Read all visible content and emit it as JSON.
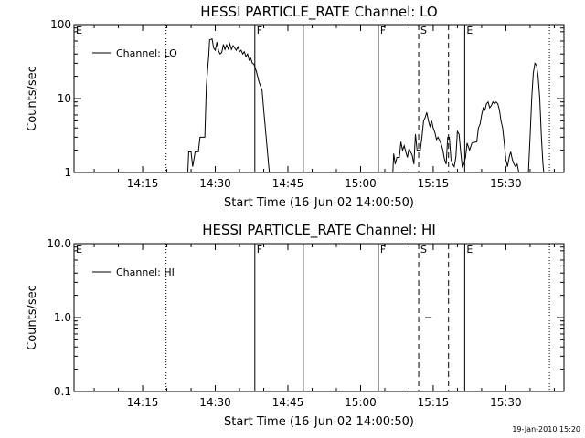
{
  "chart_data": [
    {
      "type": "line",
      "title": "HESSI PARTICLE_RATE Channel: LO",
      "xlabel": "Start Time (16-Jun-02 14:00:50)",
      "ylabel": "Counts/sec",
      "yscale": "log",
      "xlim": [
        "14:00:50",
        "15:42:00"
      ],
      "ylim": [
        1,
        100
      ],
      "x_ticks": [
        "14:15",
        "14:30",
        "14:45",
        "15:00",
        "15:15",
        "15:30"
      ],
      "y_ticks": [
        "1",
        "10",
        "100"
      ],
      "legend": {
        "placement": "top-left",
        "entries": [
          "Channel: LO"
        ]
      },
      "grid": false,
      "event_markers": [
        {
          "label": "E",
          "time": "14:00:50",
          "style": "dotted"
        },
        {
          "label": "",
          "time": "14:19:50",
          "style": "dotted"
        },
        {
          "label": "F",
          "time": "14:38:10",
          "style": "solid"
        },
        {
          "label": "",
          "time": "14:48:10",
          "style": "solid"
        },
        {
          "label": "F",
          "time": "15:03:40",
          "style": "solid"
        },
        {
          "label": "S",
          "time": "15:12:00",
          "style": "dashed"
        },
        {
          "label": "",
          "time": "15:18:10",
          "style": "dashed"
        },
        {
          "label": "E",
          "time": "15:21:30",
          "style": "solid"
        },
        {
          "label": "",
          "time": "15:39:00",
          "style": "dotted"
        }
      ],
      "series": [
        {
          "name": "Channel: LO",
          "segments": [
            [
              [
                "14:24:20",
                1
              ],
              [
                "14:24:30",
                1.9
              ],
              [
                "14:25:00",
                1.9
              ],
              [
                "14:25:20",
                1.2
              ],
              [
                "14:25:50",
                1.9
              ],
              [
                "14:26:30",
                1.9
              ],
              [
                "14:26:50",
                3.0
              ],
              [
                "14:27:50",
                3.0
              ],
              [
                "14:28:10",
                15
              ],
              [
                "14:28:40",
                40
              ],
              [
                "14:28:50",
                62
              ],
              [
                "14:29:20",
                64
              ],
              [
                "14:29:40",
                48
              ],
              [
                "14:30:00",
                45
              ],
              [
                "14:30:20",
                58
              ],
              [
                "14:30:40",
                44
              ],
              [
                "14:31:00",
                40
              ],
              [
                "14:31:20",
                42
              ],
              [
                "14:31:40",
                54
              ],
              [
                "14:32:00",
                46
              ],
              [
                "14:32:20",
                53
              ],
              [
                "14:32:40",
                47
              ],
              [
                "14:33:00",
                55
              ],
              [
                "14:33:20",
                46
              ],
              [
                "14:33:40",
                52
              ],
              [
                "14:34:20",
                45
              ],
              [
                "14:34:40",
                50
              ],
              [
                "14:35:00",
                43
              ],
              [
                "14:35:20",
                45
              ],
              [
                "14:35:40",
                40
              ],
              [
                "14:36:00",
                43
              ],
              [
                "14:36:20",
                37
              ],
              [
                "14:36:40",
                40
              ],
              [
                "14:37:00",
                33
              ],
              [
                "14:37:20",
                35
              ],
              [
                "14:37:40",
                30
              ],
              [
                "14:38:00",
                29
              ],
              [
                "14:38:30",
                23
              ],
              [
                "14:39:00",
                17
              ],
              [
                "14:39:40",
                13
              ],
              [
                "14:40:00",
                7
              ],
              [
                "14:40:30",
                3
              ],
              [
                "14:41:00",
                1.3
              ],
              [
                "14:41:10",
                1
              ]
            ],
            [
              [
                "15:06:40",
                1
              ],
              [
                "15:06:50",
                1.8
              ],
              [
                "15:07:10",
                1.3
              ],
              [
                "15:07:30",
                1.6
              ],
              [
                "15:08:00",
                1.6
              ],
              [
                "15:08:20",
                2.6
              ],
              [
                "15:08:40",
                2.0
              ],
              [
                "15:09:00",
                2.3
              ],
              [
                "15:09:20",
                1.9
              ],
              [
                "15:09:40",
                1.6
              ],
              [
                "15:10:00",
                2.1
              ],
              [
                "15:10:40",
                1.7
              ],
              [
                "15:11:00",
                1.3
              ],
              [
                "15:11:20",
                3.3
              ],
              [
                "15:11:40",
                2.0
              ],
              [
                "15:12:20",
                2.0
              ],
              [
                "15:12:40",
                3.0
              ],
              [
                "15:13:00",
                5.0
              ],
              [
                "15:13:20",
                5.5
              ],
              [
                "15:13:40",
                6.5
              ],
              [
                "15:14:00",
                5.0
              ],
              [
                "15:14:20",
                4.2
              ],
              [
                "15:14:40",
                5.0
              ],
              [
                "15:15:00",
                4.0
              ],
              [
                "15:15:20",
                3.5
              ],
              [
                "15:15:40",
                2.8
              ],
              [
                "15:16:00",
                3.0
              ],
              [
                "15:16:20",
                2.7
              ],
              [
                "15:16:40",
                2.4
              ],
              [
                "15:17:00",
                2.0
              ],
              [
                "15:17:20",
                1.5
              ],
              [
                "15:17:40",
                1.3
              ],
              [
                "15:18:00",
                3.0
              ],
              [
                "15:18:20",
                3.0
              ],
              [
                "15:18:40",
                1.5
              ],
              [
                "15:19:00",
                1.3
              ],
              [
                "15:19:20",
                1.2
              ],
              [
                "15:19:40",
                1.6
              ],
              [
                "15:20:00",
                3.6
              ],
              [
                "15:20:20",
                3.3
              ],
              [
                "15:20:40",
                1.9
              ],
              [
                "15:21:00",
                1.2
              ],
              [
                "15:21:20",
                1.3
              ],
              [
                "15:21:40",
                1.6
              ],
              [
                "15:22:00",
                2.5
              ],
              [
                "15:22:30",
                2.0
              ],
              [
                "15:23:00",
                2.5
              ],
              [
                "15:24:00",
                2.6
              ],
              [
                "15:24:20",
                4.0
              ],
              [
                "15:24:40",
                4.5
              ],
              [
                "15:25:00",
                6.0
              ],
              [
                "15:25:20",
                7.5
              ],
              [
                "15:25:40",
                7.0
              ],
              [
                "15:26:00",
                8.5
              ],
              [
                "15:26:20",
                9.0
              ],
              [
                "15:26:40",
                7.5
              ],
              [
                "15:27:00",
                8.0
              ],
              [
                "15:27:20",
                9.0
              ],
              [
                "15:27:40",
                8.5
              ],
              [
                "15:28:00",
                9.0
              ],
              [
                "15:28:20",
                8.5
              ],
              [
                "15:28:40",
                7.0
              ],
              [
                "15:29:00",
                5.0
              ],
              [
                "15:29:20",
                4.0
              ],
              [
                "15:29:40",
                2.5
              ],
              [
                "15:30:00",
                1.5
              ],
              [
                "15:30:20",
                1.2
              ],
              [
                "15:30:40",
                1.6
              ],
              [
                "15:31:00",
                1.9
              ],
              [
                "15:31:20",
                1.5
              ],
              [
                "15:31:40",
                1.3
              ],
              [
                "15:32:00",
                1.2
              ],
              [
                "15:32:20",
                1.3
              ],
              [
                "15:32:40",
                1.0
              ]
            ],
            [
              [
                "15:34:40",
                1
              ],
              [
                "15:35:00",
                3
              ],
              [
                "15:35:20",
                10
              ],
              [
                "15:35:40",
                22
              ],
              [
                "15:36:00",
                30
              ],
              [
                "15:36:20",
                28
              ],
              [
                "15:36:40",
                20
              ],
              [
                "15:37:00",
                10
              ],
              [
                "15:37:20",
                3
              ],
              [
                "15:37:40",
                1.3
              ],
              [
                "15:37:50",
                1
              ]
            ]
          ]
        }
      ]
    },
    {
      "type": "line",
      "title": "HESSI PARTICLE_RATE Channel: HI",
      "xlabel": "Start Time (16-Jun-02 14:00:50)",
      "ylabel": "Counts/sec",
      "yscale": "log",
      "xlim": [
        "14:00:50",
        "15:42:00"
      ],
      "ylim": [
        0.1,
        10
      ],
      "x_ticks": [
        "14:15",
        "14:30",
        "14:45",
        "15:00",
        "15:15",
        "15:30"
      ],
      "y_ticks": [
        "0.1",
        "1.0",
        "10.0"
      ],
      "legend": {
        "placement": "top-left",
        "entries": [
          "Channel: HI"
        ]
      },
      "grid": false,
      "event_markers": [
        {
          "label": "E",
          "time": "14:00:50",
          "style": "dotted"
        },
        {
          "label": "",
          "time": "14:19:50",
          "style": "dotted"
        },
        {
          "label": "F",
          "time": "14:38:10",
          "style": "solid"
        },
        {
          "label": "",
          "time": "14:48:10",
          "style": "solid"
        },
        {
          "label": "F",
          "time": "15:03:40",
          "style": "solid"
        },
        {
          "label": "S",
          "time": "15:12:00",
          "style": "dashed"
        },
        {
          "label": "",
          "time": "15:18:10",
          "style": "dashed"
        },
        {
          "label": "E",
          "time": "15:21:30",
          "style": "solid"
        },
        {
          "label": "",
          "time": "15:39:00",
          "style": "dotted"
        }
      ],
      "series": [
        {
          "name": "Channel: HI",
          "segments": [
            [
              [
                "15:13:20",
                1.0
              ],
              [
                "15:14:40",
                1.0
              ]
            ]
          ]
        }
      ]
    }
  ],
  "footer": {
    "timestamp": "19-Jan-2010 15:20"
  }
}
